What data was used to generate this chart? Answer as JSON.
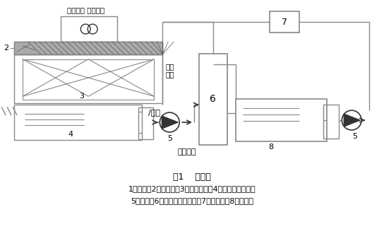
{
  "title": "图1    流程图",
  "caption": "1、风机；2、收水器；3、淋水装置；4、冷却塔集水池；\n5、水泵；6、电石炉冷却系统；7、过滤器；8、热水池",
  "bg_color": "#ffffff",
  "line_color": "#888888",
  "dark_color": "#333333",
  "label_蒸发损失": "蒸发损失 风吹损失",
  "label_回水热水": "回水\n热水",
  "label_空气": "/空气",
  "label_出水冷水": "出水冷水",
  "label_2": "2",
  "label_3": "3",
  "label_4": "4",
  "label_5a": "5",
  "label_5b": "5",
  "label_6": "6",
  "label_7": "7",
  "label_8": "8"
}
